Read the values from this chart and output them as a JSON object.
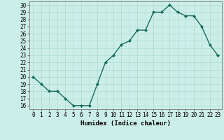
{
  "x": [
    0,
    1,
    2,
    3,
    4,
    5,
    6,
    7,
    8,
    9,
    10,
    11,
    12,
    13,
    14,
    15,
    16,
    17,
    18,
    19,
    20,
    21,
    22,
    23
  ],
  "y": [
    20,
    19,
    18,
    18,
    17,
    16,
    16,
    16,
    19,
    22,
    23,
    24.5,
    25,
    26.5,
    26.5,
    29,
    29,
    30,
    29,
    28.5,
    28.5,
    27,
    24.5,
    23
  ],
  "line_color": "#1a6b5a",
  "marker": "D",
  "marker_size": 2,
  "bg_color": "#cceee8",
  "grid_color": "#aaddcc",
  "xlabel": "Humidex (Indice chaleur)",
  "xlim": [
    -0.5,
    23.5
  ],
  "ylim": [
    15.5,
    30.5
  ],
  "yticks": [
    16,
    17,
    18,
    19,
    20,
    21,
    22,
    23,
    24,
    25,
    26,
    27,
    28,
    29,
    30
  ],
  "xtick_labels": [
    "0",
    "1",
    "2",
    "3",
    "4",
    "5",
    "6",
    "7",
    "8",
    "9",
    "10",
    "11",
    "12",
    "13",
    "14",
    "15",
    "16",
    "17",
    "18",
    "19",
    "20",
    "21",
    "22",
    "23"
  ],
  "xlabel_fontsize": 6.5,
  "tick_fontsize": 5.5,
  "linewidth": 1.0
}
